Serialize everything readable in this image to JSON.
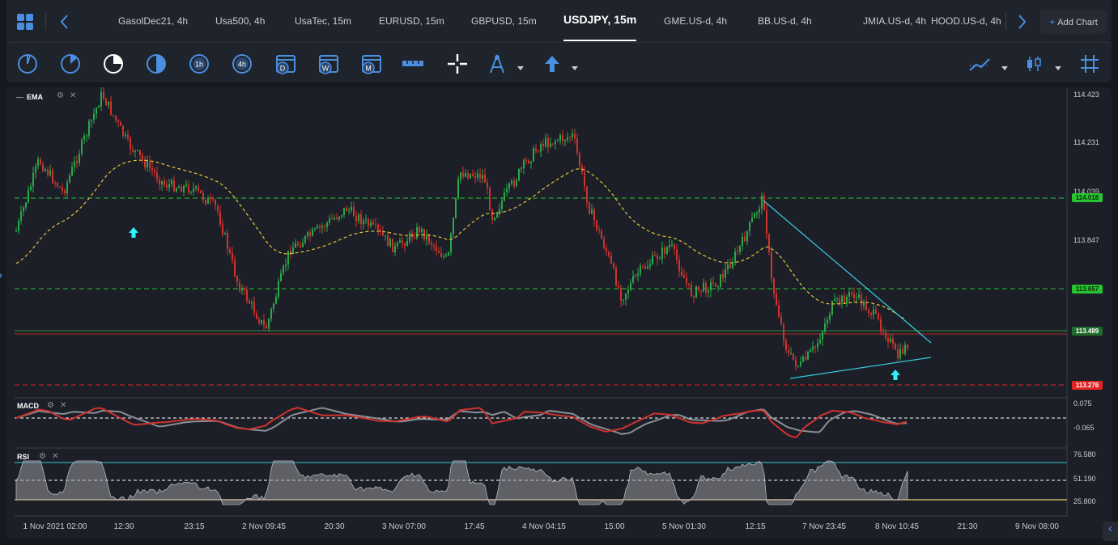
{
  "tabs": [
    "GasolDec21, 4h",
    "Usa500, 4h",
    "UsaTec, 15m",
    "EURUSD, 15m",
    "GBPUSD, 15m",
    "USDJPY, 15m",
    "GME.US-d, 4h",
    "BB.US-d, 4h",
    "JMIA.US-d, 4h",
    "HOOD.US-d, 4h"
  ],
  "active_tab": "USDJPY, 15m",
  "add_chart_label": "Add Chart",
  "toolbar": {
    "tools": [
      "clock-1-icon",
      "clock-2-icon",
      "clock-3-icon",
      "clock-4-icon",
      "1h",
      "4h",
      "D",
      "W",
      "M",
      "ruler-icon",
      "crosshair-icon",
      "drawing-tools-icon",
      "arrow-up-icon",
      "indicators-icon",
      "candles-icon",
      "grid-icon"
    ]
  },
  "indicators": {
    "main": "EMA",
    "macd": "MACD",
    "rsi": "RSI"
  },
  "price_axis": [
    "114.423",
    "114.231",
    "114.039",
    "113.847",
    "113.657",
    "113.489",
    "113.276"
  ],
  "price_badges": {
    "upper": "114.018",
    "middle": "113.657",
    "current": "113.489",
    "lower": "113.276"
  },
  "macd_axis": [
    "0.075",
    "-0.065"
  ],
  "rsi_axis": [
    "76.580",
    "51.190",
    "25.800"
  ],
  "time_axis": [
    "1 Nov 2021 02:00",
    "12:30",
    "23:15",
    "2 Nov 09:45",
    "20:30",
    "3 Nov 07:00",
    "17:45",
    "4 Nov 04:15",
    "15:00",
    "5 Nov 01:30",
    "12:15",
    "7 Nov 23:45",
    "8 Nov 10:45",
    "21:30",
    "9 Nov 08:00"
  ],
  "colors": {
    "bull": "#2aa84a",
    "bear": "#d0322d",
    "ema": "#e3c53a",
    "support_green": "#27c431",
    "resistance_red": "#e22424",
    "trendline": "#35c8d8",
    "accent": "#4a8fe0"
  }
}
